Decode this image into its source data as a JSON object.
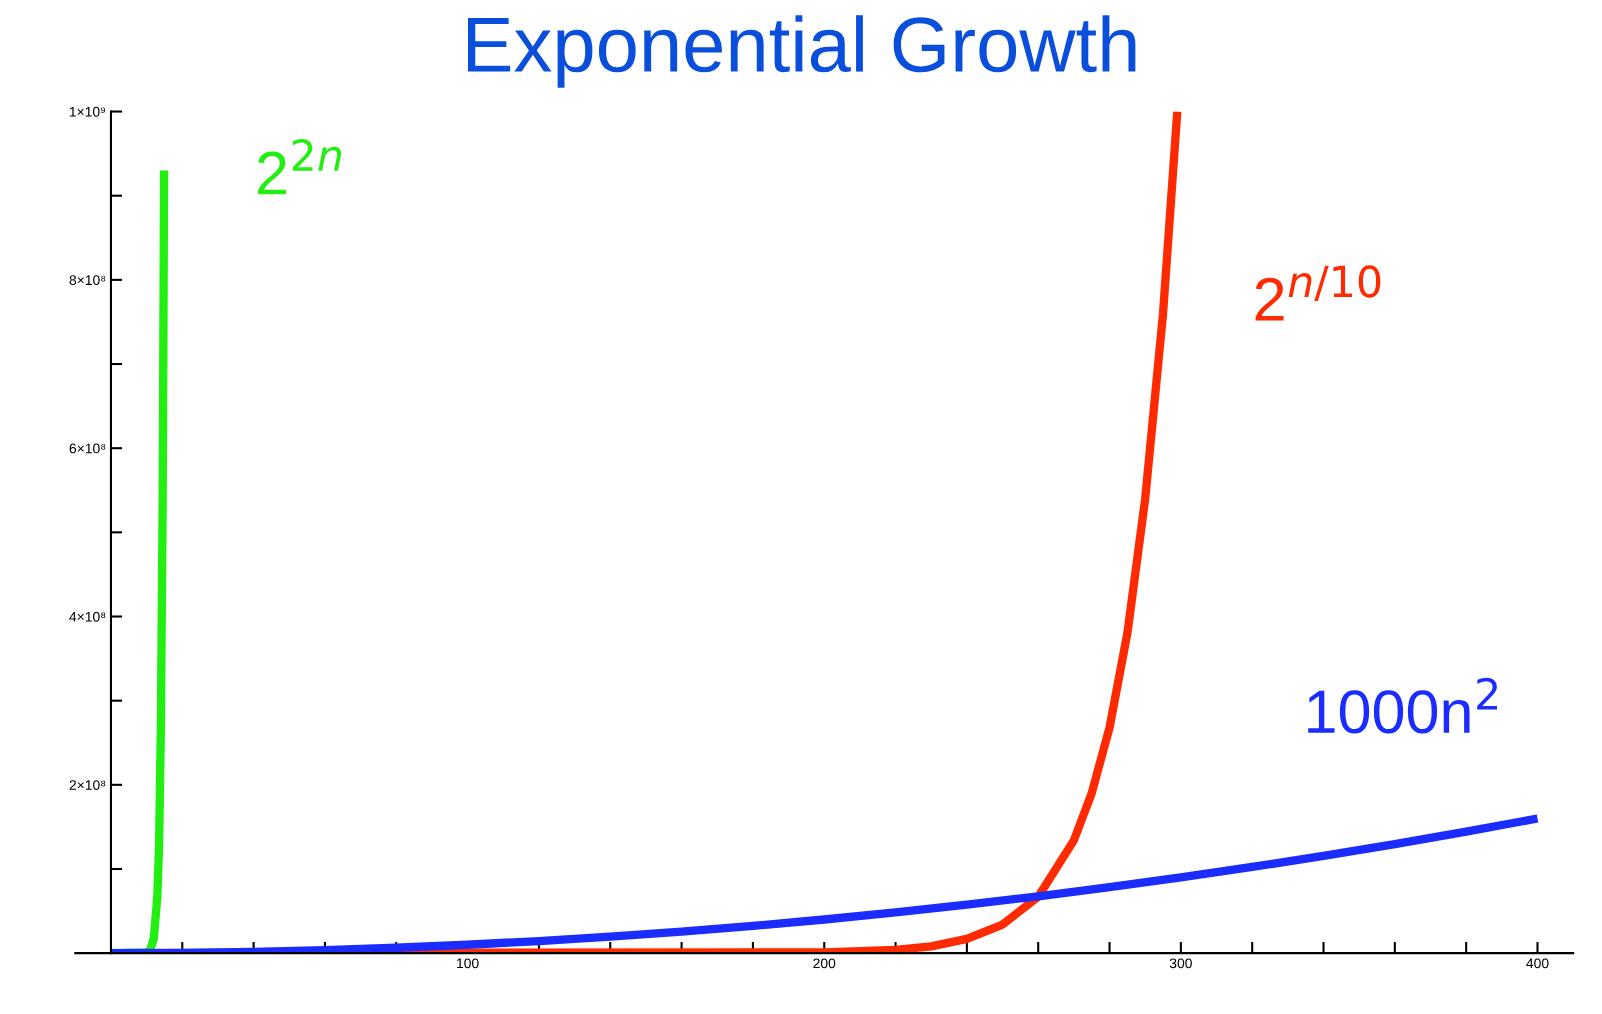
{
  "chart_data": {
    "type": "line",
    "title": "Exponential Growth",
    "xlim": [
      -10,
      410
    ],
    "ylim": [
      0,
      1000000000
    ],
    "xticks": [
      {
        "value": 20,
        "label": null
      },
      {
        "value": 40,
        "label": null
      },
      {
        "value": 60,
        "label": null
      },
      {
        "value": 80,
        "label": null
      },
      100,
      {
        "value": 120,
        "label": null
      },
      {
        "value": 140,
        "label": null
      },
      {
        "value": 160,
        "label": null
      },
      {
        "value": 180,
        "label": null
      },
      200,
      {
        "value": 220,
        "label": null
      },
      {
        "value": 240,
        "label": null
      },
      {
        "value": 260,
        "label": null
      },
      {
        "value": 280,
        "label": null
      },
      300,
      {
        "value": 320,
        "label": null
      },
      {
        "value": 340,
        "label": null
      },
      {
        "value": 360,
        "label": null
      },
      {
        "value": 380,
        "label": null
      },
      400
    ],
    "yticks": [
      {
        "value": 100000000,
        "label": null
      },
      {
        "value": 200000000,
        "label": "2×10⁸"
      },
      {
        "value": 300000000,
        "label": null
      },
      {
        "value": 400000000,
        "label": "4×10⁸"
      },
      {
        "value": 500000000,
        "label": null
      },
      {
        "value": 600000000,
        "label": "6×10⁸"
      },
      {
        "value": 700000000,
        "label": null
      },
      {
        "value": 800000000,
        "label": "8×10⁸"
      },
      {
        "value": 900000000,
        "label": null
      },
      {
        "value": 1000000000,
        "label": "1×10⁹"
      }
    ],
    "grid": false,
    "legend": false,
    "marker": "none",
    "line_style": "solid",
    "series": [
      {
        "name": "2$^{2n}$",
        "color": "#22ee11",
        "x": [
          0,
          10,
          11,
          12,
          13,
          13.5,
          14,
          14.5,
          14.9
        ],
        "values": [
          0,
          1000000,
          4000000,
          17000000,
          67000000,
          130000000,
          270000000,
          540000000,
          930000000
        ]
      },
      {
        "name": "2$^{n/10}$",
        "color": "#ff2a00",
        "x": [
          0,
          200,
          220,
          230,
          240,
          250,
          260,
          270,
          275,
          280,
          285,
          290,
          295,
          298,
          299
        ],
        "values": [
          0,
          1000000,
          4000000,
          8000000,
          17000000,
          34000000,
          67000000,
          134000000,
          190000000,
          268000000,
          380000000,
          540000000,
          760000000,
          940000000,
          1000000000
        ]
      },
      {
        "name": "1000n$^{2}$",
        "color": "#1a2cff",
        "x": [
          0,
          20,
          40,
          60,
          80,
          100,
          120,
          140,
          160,
          180,
          200,
          220,
          240,
          260,
          280,
          300,
          320,
          340,
          360,
          380,
          400
        ],
        "values": [
          0,
          400000,
          1600000,
          3600000,
          6400000,
          10000000,
          14400000,
          19600000,
          25600000,
          32400000,
          40000000,
          48400000,
          57600000,
          67600000,
          78400000,
          90000000,
          102400000,
          115600000,
          129600000,
          144400000,
          160000000
        ]
      }
    ]
  }
}
